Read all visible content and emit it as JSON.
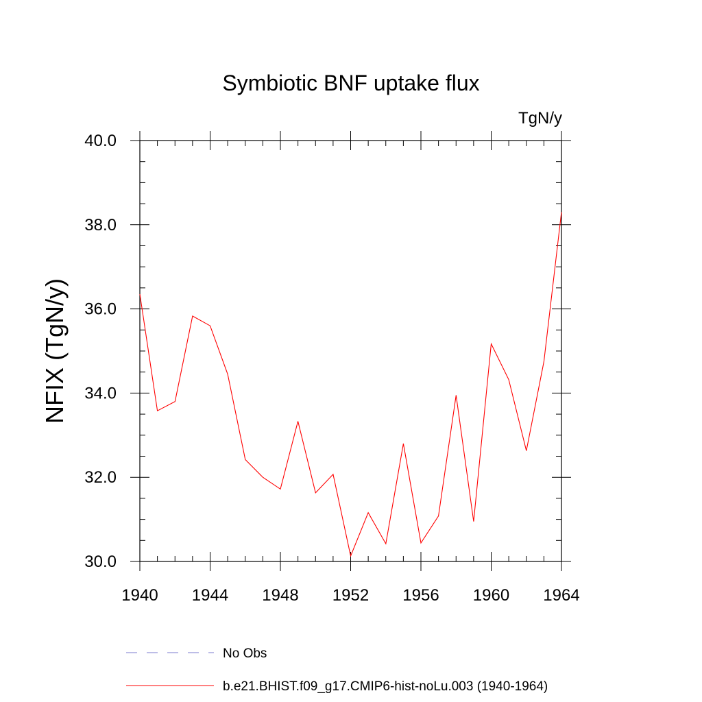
{
  "chart_data": {
    "type": "line",
    "title": "Symbiotic BNF uptake flux",
    "units": "TgN/y",
    "xlabel": "",
    "ylabel": "NFIX  (TgN/y)",
    "xlim": [
      1940,
      1964
    ],
    "ylim": [
      30.0,
      40.0
    ],
    "x_ticks": [
      1940,
      1944,
      1948,
      1952,
      1956,
      1960,
      1964
    ],
    "x_tick_labels": [
      "1940",
      "1944",
      "1948",
      "1952",
      "1956",
      "1960",
      "1964"
    ],
    "y_ticks": [
      30.0,
      32.0,
      34.0,
      36.0,
      38.0,
      40.0
    ],
    "y_tick_labels": [
      "30.0",
      "32.0",
      "34.0",
      "36.0",
      "38.0",
      "40.0"
    ],
    "series": [
      {
        "name": "b.e21.BHIST.f09_g17.CMIP6-hist-noLu.003 (1940-1964)",
        "color": "#ff0000",
        "style": "solid",
        "x": [
          1940,
          1941,
          1942,
          1943,
          1944,
          1945,
          1946,
          1947,
          1948,
          1949,
          1950,
          1951,
          1952,
          1953,
          1954,
          1955,
          1956,
          1957,
          1958,
          1959,
          1960,
          1961,
          1962,
          1963,
          1964
        ],
        "values": [
          36.35,
          33.58,
          33.8,
          35.83,
          35.6,
          34.45,
          32.42,
          32.0,
          31.72,
          33.33,
          31.63,
          32.07,
          30.13,
          31.16,
          30.42,
          32.8,
          30.44,
          31.08,
          33.95,
          30.95,
          35.17,
          34.32,
          32.63,
          34.75,
          38.3
        ]
      }
    ],
    "legend": {
      "placement": "bottom",
      "entries": [
        {
          "label": "No Obs",
          "color": "#7b7bcf",
          "style": "dashed"
        },
        {
          "label": "b.e21.BHIST.f09_g17.CMIP6-hist-noLu.003 (1940-1964)",
          "color": "#ff0000",
          "style": "solid"
        }
      ]
    }
  }
}
